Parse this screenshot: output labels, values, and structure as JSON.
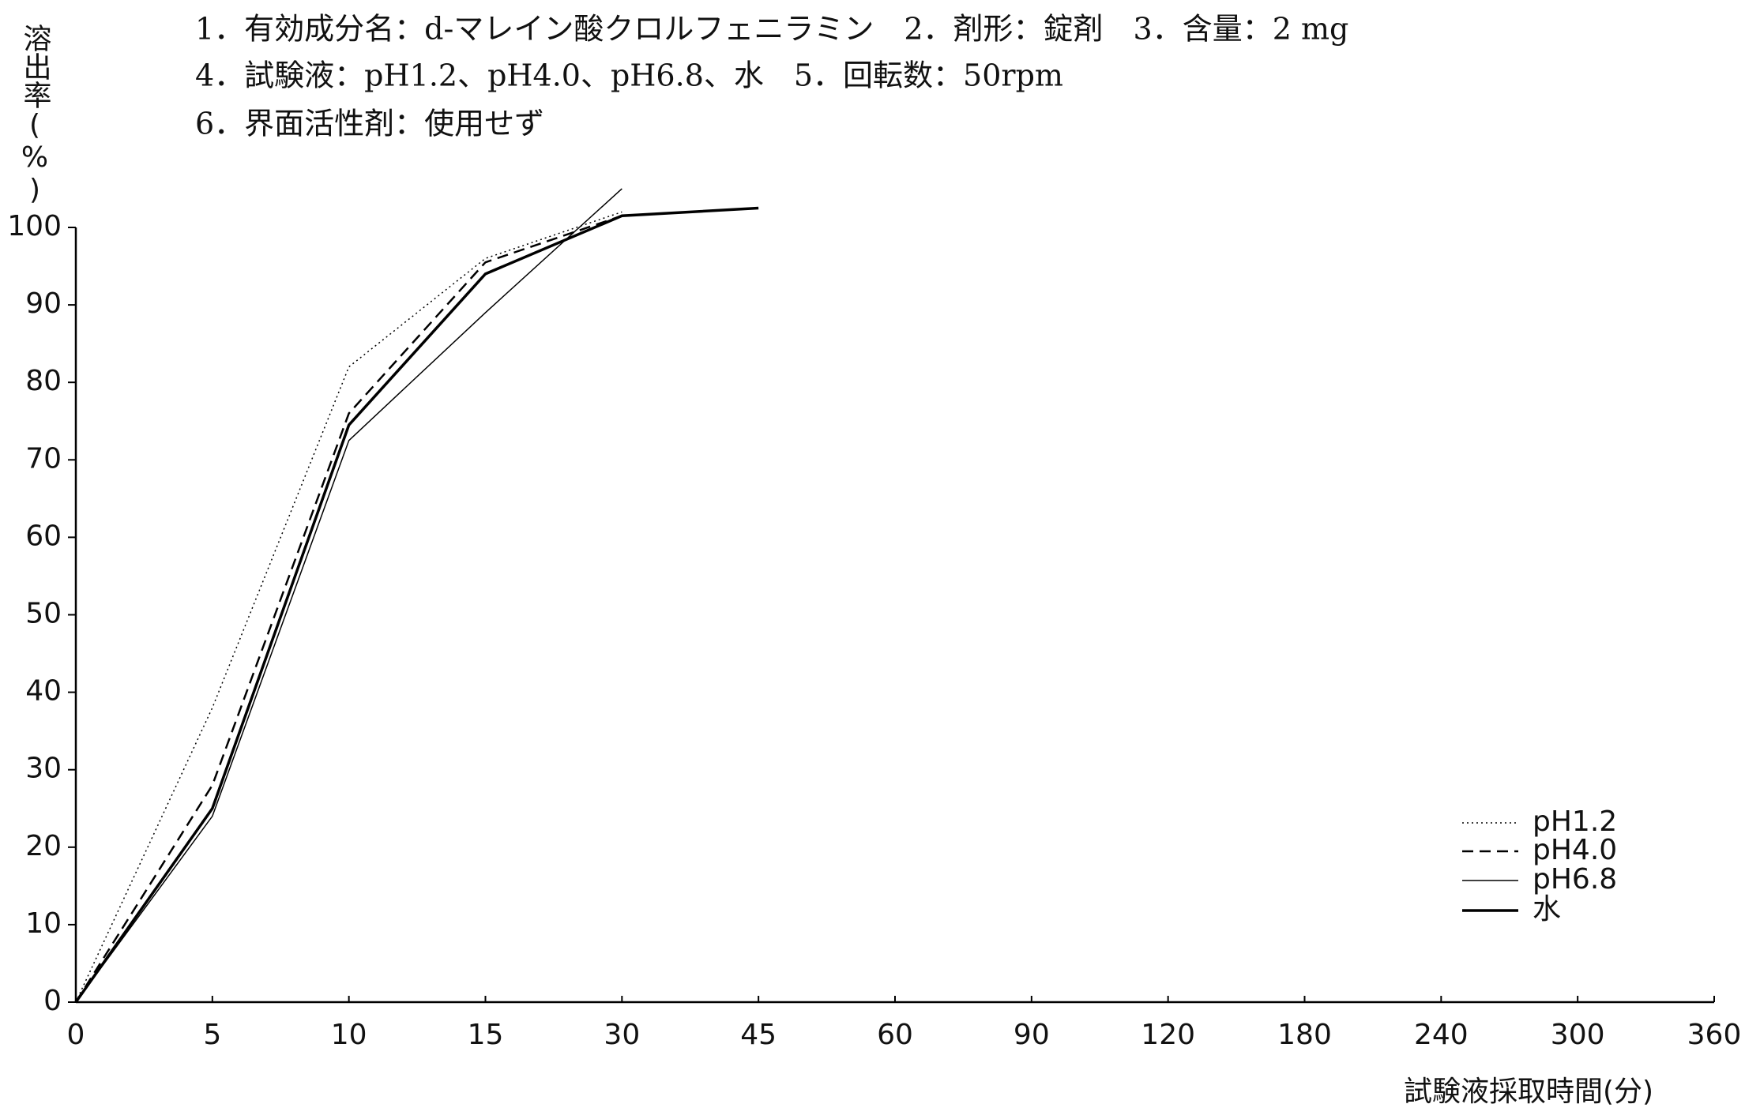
{
  "chart_data": {
    "type": "line",
    "title_lines": [
      "1．有効成分名：d-マレイン酸クロルフェニラミン　2．剤形：錠剤　3．含量：2 mg",
      "4．試験液：pH1.2、pH4.0、pH6.8、水　5．回転数：50rpm",
      "6．界面活性剤：使用せず"
    ],
    "ylabel": "溶出率(%)",
    "xlabel": "試験液採取時間(分)",
    "categories": [
      0,
      5,
      10,
      15,
      30,
      45,
      60,
      90,
      120,
      180,
      240,
      300,
      360
    ],
    "series": [
      {
        "name": "pH1.2",
        "color": "#000000",
        "dash": "dotted",
        "linewidth": 1.5,
        "values": [
          0,
          38,
          82,
          96,
          102,
          null,
          null,
          null,
          null,
          null,
          null,
          null,
          null
        ]
      },
      {
        "name": "pH4.0",
        "color": "#000000",
        "dash": "dashed",
        "linewidth": 2.5,
        "values": [
          0,
          28,
          76,
          95.5,
          101.5,
          null,
          null,
          null,
          null,
          null,
          null,
          null,
          null
        ]
      },
      {
        "name": "pH6.8",
        "color": "#000000",
        "dash": "solid",
        "linewidth": 1.5,
        "values": [
          0,
          24,
          72.5,
          89,
          105,
          null,
          null,
          null,
          null,
          null,
          null,
          null,
          null
        ]
      },
      {
        "name": "水",
        "color": "#000000",
        "dash": "solid",
        "linewidth": 3.5,
        "values": [
          0,
          25,
          74.5,
          94,
          101.5,
          102.5,
          null,
          null,
          null,
          null,
          null,
          null,
          null
        ]
      }
    ],
    "ylim": [
      0,
      100
    ],
    "yticks": [
      0,
      10,
      20,
      30,
      40,
      50,
      60,
      70,
      80,
      90,
      100
    ],
    "legend": "lower right"
  }
}
